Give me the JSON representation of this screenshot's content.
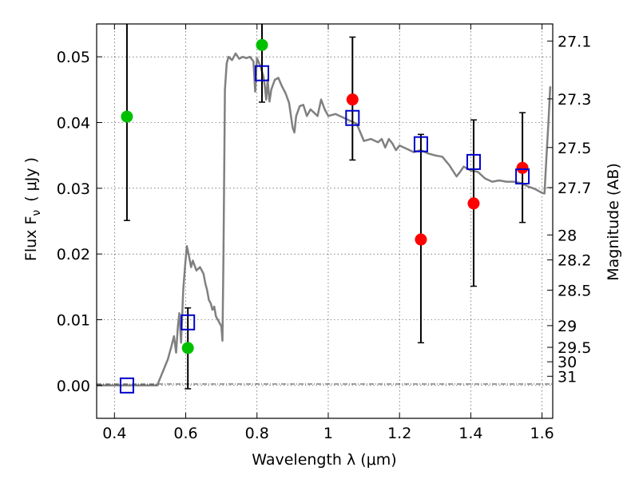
{
  "chart_data": {
    "type": "scatter",
    "xlabel": "Wavelength  λ (μm)",
    "ylabel": "Flux  F",
    "ylabel_sub": "ν",
    "ylabel_unit": "( μJy )",
    "ylabel_right": "Magnitude (AB)",
    "xlim": [
      0.35,
      1.63
    ],
    "ylim": [
      -0.005,
      0.055
    ],
    "grid": true,
    "x_ticks": [
      0.4,
      0.6,
      0.8,
      1.0,
      1.2,
      1.4,
      1.6
    ],
    "x_tick_labels": [
      "0.4",
      "0.6",
      "0.8",
      "1",
      "1.2",
      "1.4",
      "1.6"
    ],
    "y_ticks": [
      0.0,
      0.01,
      0.02,
      0.03,
      0.04,
      0.05
    ],
    "y_tick_labels": [
      "0.00",
      "0.01",
      "0.02",
      "0.03",
      "0.04",
      "0.05"
    ],
    "right_ticks": [
      {
        "label": "27.1",
        "flux": 0.0524
      },
      {
        "label": "27.3",
        "flux": 0.0436
      },
      {
        "label": "27.5",
        "flux": 0.0362
      },
      {
        "label": "27.7",
        "flux": 0.0301
      },
      {
        "label": "28",
        "flux": 0.0229
      },
      {
        "label": "28.2",
        "flux": 0.0191
      },
      {
        "label": "28.5",
        "flux": 0.0145
      },
      {
        "label": "29",
        "flux": 0.0091
      },
      {
        "label": "29.5",
        "flux": 0.0058
      },
      {
        "label": "30",
        "flux": 0.0036
      },
      {
        "label": "31",
        "flux": 0.0014
      }
    ],
    "model_sed": {
      "color": "#808080",
      "points": [
        [
          0.35,
          0.0
        ],
        [
          0.52,
          0.0
        ],
        [
          0.535,
          0.002
        ],
        [
          0.55,
          0.004
        ],
        [
          0.56,
          0.006
        ],
        [
          0.567,
          0.0075
        ],
        [
          0.573,
          0.005
        ],
        [
          0.578,
          0.009
        ],
        [
          0.582,
          0.011
        ],
        [
          0.587,
          0.0065
        ],
        [
          0.593,
          0.0145
        ],
        [
          0.598,
          0.018
        ],
        [
          0.603,
          0.0212
        ],
        [
          0.608,
          0.02
        ],
        [
          0.615,
          0.018
        ],
        [
          0.62,
          0.019
        ],
        [
          0.63,
          0.0175
        ],
        [
          0.64,
          0.018
        ],
        [
          0.65,
          0.017
        ],
        [
          0.655,
          0.0155
        ],
        [
          0.66,
          0.0145
        ],
        [
          0.665,
          0.013
        ],
        [
          0.67,
          0.0125
        ],
        [
          0.675,
          0.0115
        ],
        [
          0.68,
          0.012
        ],
        [
          0.685,
          0.0105
        ],
        [
          0.69,
          0.01
        ],
        [
          0.695,
          0.0095
        ],
        [
          0.7,
          0.009
        ],
        [
          0.703,
          0.0068
        ],
        [
          0.706,
          0.02
        ],
        [
          0.71,
          0.045
        ],
        [
          0.715,
          0.049
        ],
        [
          0.72,
          0.05
        ],
        [
          0.73,
          0.0495
        ],
        [
          0.74,
          0.0505
        ],
        [
          0.75,
          0.0497
        ],
        [
          0.76,
          0.05
        ],
        [
          0.77,
          0.0498
        ],
        [
          0.78,
          0.05
        ],
        [
          0.79,
          0.0493
        ],
        [
          0.795,
          0.0447
        ],
        [
          0.8,
          0.0498
        ],
        [
          0.81,
          0.0485
        ],
        [
          0.818,
          0.047
        ],
        [
          0.822,
          0.0455
        ],
        [
          0.826,
          0.0435
        ],
        [
          0.83,
          0.0465
        ],
        [
          0.835,
          0.0432
        ],
        [
          0.84,
          0.045
        ],
        [
          0.85,
          0.0465
        ],
        [
          0.86,
          0.0468
        ],
        [
          0.87,
          0.0455
        ],
        [
          0.88,
          0.0445
        ],
        [
          0.89,
          0.043
        ],
        [
          0.9,
          0.0392
        ],
        [
          0.905,
          0.0385
        ],
        [
          0.91,
          0.041
        ],
        [
          0.92,
          0.0425
        ],
        [
          0.93,
          0.0427
        ],
        [
          0.94,
          0.041
        ],
        [
          0.95,
          0.042
        ],
        [
          0.96,
          0.0415
        ],
        [
          0.97,
          0.041
        ],
        [
          0.98,
          0.0435
        ],
        [
          0.99,
          0.042
        ],
        [
          1.0,
          0.041
        ],
        [
          1.02,
          0.0413
        ],
        [
          1.04,
          0.0408
        ],
        [
          1.06,
          0.0403
        ],
        [
          1.08,
          0.0398
        ],
        [
          1.09,
          0.0385
        ],
        [
          1.1,
          0.0372
        ],
        [
          1.12,
          0.0375
        ],
        [
          1.14,
          0.037
        ],
        [
          1.15,
          0.0375
        ],
        [
          1.16,
          0.0362
        ],
        [
          1.17,
          0.0375
        ],
        [
          1.18,
          0.0368
        ],
        [
          1.19,
          0.0358
        ],
        [
          1.2,
          0.0365
        ],
        [
          1.22,
          0.036
        ],
        [
          1.24,
          0.0355
        ],
        [
          1.26,
          0.0358
        ],
        [
          1.28,
          0.0353
        ],
        [
          1.3,
          0.035
        ],
        [
          1.32,
          0.0348
        ],
        [
          1.34,
          0.0335
        ],
        [
          1.36,
          0.0318
        ],
        [
          1.37,
          0.0325
        ],
        [
          1.38,
          0.0333
        ],
        [
          1.4,
          0.0327
        ],
        [
          1.42,
          0.0325
        ],
        [
          1.44,
          0.0315
        ],
        [
          1.46,
          0.031
        ],
        [
          1.48,
          0.0312
        ],
        [
          1.5,
          0.031
        ],
        [
          1.52,
          0.031
        ],
        [
          1.54,
          0.0308
        ],
        [
          1.56,
          0.0303
        ],
        [
          1.58,
          0.0299
        ],
        [
          1.6,
          0.0293
        ],
        [
          1.607,
          0.0292
        ],
        [
          1.612,
          0.0345
        ],
        [
          1.618,
          0.04
        ],
        [
          1.623,
          0.0455
        ]
      ]
    },
    "series": [
      {
        "marker": "filled-circle",
        "color": "#00c000",
        "points": [
          {
            "x": 0.435,
            "y": 0.0409,
            "yerr_low": 0.0251,
            "yerr_high": 0.056
          },
          {
            "x": 0.606,
            "y": 0.0057,
            "yerr_low": -0.0005,
            "yerr_high": 0.0118
          },
          {
            "x": 0.814,
            "y": 0.0518,
            "yerr_low": 0.0431,
            "yerr_high": 0.056
          }
        ]
      },
      {
        "marker": "filled-circle",
        "color": "#ff0000",
        "points": [
          {
            "x": 1.068,
            "y": 0.0435,
            "yerr_low": 0.0343,
            "yerr_high": 0.053
          },
          {
            "x": 1.26,
            "y": 0.0222,
            "yerr_low": 0.0065,
            "yerr_high": 0.0382
          },
          {
            "x": 1.408,
            "y": 0.0277,
            "yerr_low": 0.0151,
            "yerr_high": 0.0404
          },
          {
            "x": 1.545,
            "y": 0.0331,
            "yerr_low": 0.0248,
            "yerr_high": 0.0415
          }
        ]
      },
      {
        "marker": "open-square",
        "color": "#0000cc",
        "points": [
          {
            "x": 0.435,
            "y": 0.0
          },
          {
            "x": 0.606,
            "y": 0.0096
          },
          {
            "x": 0.814,
            "y": 0.0475
          },
          {
            "x": 1.068,
            "y": 0.0407
          },
          {
            "x": 1.26,
            "y": 0.0367
          },
          {
            "x": 1.408,
            "y": 0.034
          },
          {
            "x": 1.545,
            "y": 0.0318
          }
        ]
      }
    ]
  }
}
